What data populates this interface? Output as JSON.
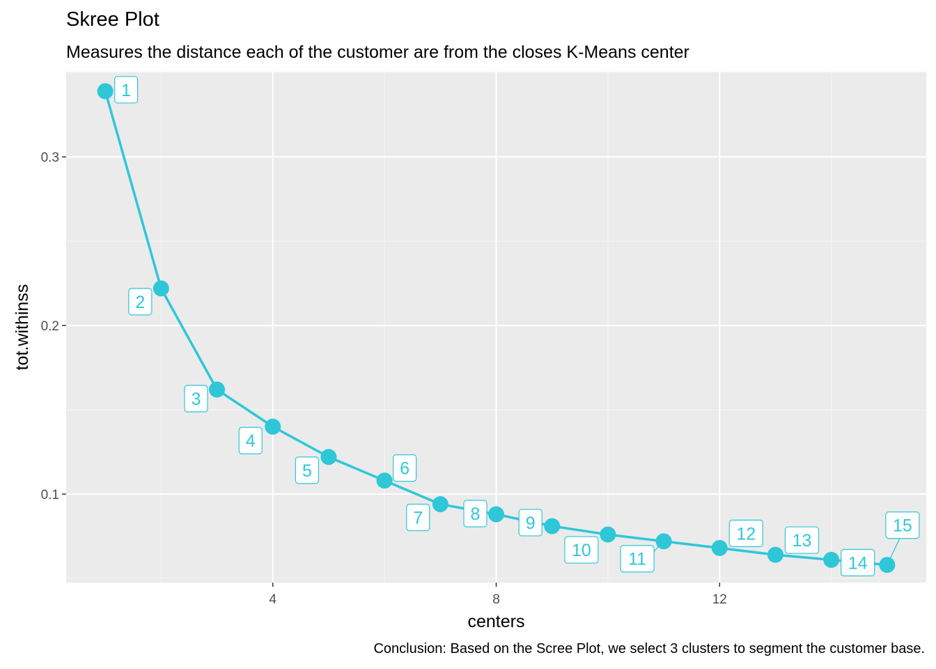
{
  "chart_data": {
    "type": "line",
    "title": "Skree Plot",
    "subtitle": "Measures the distance each of the customer are from the closes K-Means center",
    "caption": "Conclusion: Based on the Scree Plot, we select 3 clusters to segment the customer base.",
    "xlabel": "centers",
    "ylabel": "tot.withinss",
    "x": [
      1,
      2,
      3,
      4,
      5,
      6,
      7,
      8,
      9,
      10,
      11,
      12,
      13,
      14,
      15
    ],
    "y": [
      0.339,
      0.222,
      0.162,
      0.14,
      0.122,
      0.108,
      0.094,
      0.088,
      0.081,
      0.076,
      0.072,
      0.068,
      0.064,
      0.061,
      0.058
    ],
    "point_labels": [
      "1",
      "2",
      "3",
      "4",
      "5",
      "6",
      "7",
      "8",
      "9",
      "10",
      "11",
      "12",
      "13",
      "14",
      "15"
    ],
    "xlim": [
      0.3,
      15.7
    ],
    "ylim": [
      0.0475,
      0.3505
    ],
    "x_ticks": [
      4,
      8,
      12
    ],
    "x_tick_labels": [
      "4",
      "8",
      "12"
    ],
    "y_ticks": [
      0.1,
      0.2,
      0.3
    ],
    "y_tick_labels": [
      "0.1",
      "0.2",
      "0.3"
    ],
    "grid": true,
    "legend": "none",
    "colors": {
      "series": "#2ec7d8",
      "panel_background": "#ebebeb",
      "grid_major": "#ffffff",
      "grid_minor": "#f5f5f5"
    }
  }
}
